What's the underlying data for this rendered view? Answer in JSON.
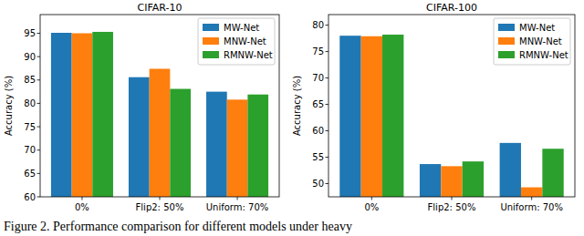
{
  "chart_data": [
    {
      "type": "bar",
      "title": "CIFAR-10",
      "y_label": "Accuracy (%)",
      "categories": [
        "0%",
        "Flip2: 50%",
        "Uniform: 70%"
      ],
      "series": [
        {
          "name": "MW-Net",
          "color": "#1f77b4",
          "values": [
            95.1,
            85.6,
            82.5
          ]
        },
        {
          "name": "MNW-Net",
          "color": "#ff7f0e",
          "values": [
            95.0,
            87.4,
            80.8
          ]
        },
        {
          "name": "RMNW-Net",
          "color": "#2ca02c",
          "values": [
            95.3,
            83.1,
            81.9
          ]
        }
      ],
      "ylim": [
        60,
        99
      ],
      "yticks": [
        60,
        65,
        70,
        75,
        80,
        85,
        90,
        95
      ],
      "grid": false,
      "legend": "upper-right"
    },
    {
      "type": "bar",
      "title": "CIFAR-100",
      "y_label": "Accuracy (%)",
      "categories": [
        "0%",
        "Flip2: 50%",
        "Uniform: 70%"
      ],
      "series": [
        {
          "name": "MW-Net",
          "color": "#1f77b4",
          "values": [
            78.0,
            53.7,
            57.7
          ]
        },
        {
          "name": "MNW-Net",
          "color": "#ff7f0e",
          "values": [
            77.9,
            53.3,
            49.3
          ]
        },
        {
          "name": "RMNW-Net",
          "color": "#2ca02c",
          "values": [
            78.2,
            54.2,
            56.6
          ]
        }
      ],
      "ylim": [
        47.5,
        82
      ],
      "yticks": [
        50,
        55,
        60,
        65,
        70,
        75,
        80
      ],
      "grid": false,
      "legend": "upper-right"
    }
  ],
  "caption": "Figure 2. Performance comparison for different models under heavy"
}
